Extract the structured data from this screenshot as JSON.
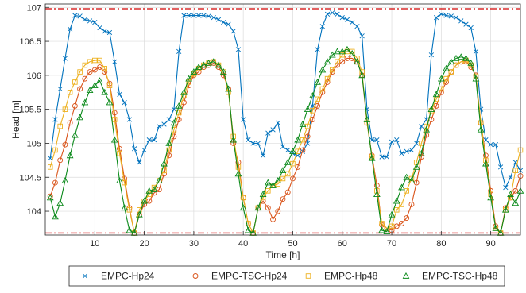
{
  "chart_data": {
    "type": "line",
    "xlabel": "Time [h]",
    "ylabel": "Head [m]",
    "xlim": [
      0,
      96
    ],
    "ylim": [
      103.65,
      107.05
    ],
    "xticks": [
      10,
      20,
      30,
      40,
      50,
      60,
      70,
      80,
      90
    ],
    "yticks": [
      104,
      104.5,
      105,
      105.5,
      106,
      106.5,
      107
    ],
    "ytick_labels": [
      "104",
      "104.5",
      "105",
      "105.5",
      "106",
      "106.5",
      "107"
    ],
    "grid": true,
    "legend_position": "bottom-outside",
    "reference_lines": [
      {
        "value": 106.98,
        "color": "#d10000",
        "style": "dash-dot"
      },
      {
        "value": 103.68,
        "color": "#d10000",
        "style": "dash-dot"
      }
    ],
    "x": [
      1,
      2,
      3,
      4,
      5,
      6,
      7,
      8,
      9,
      10,
      11,
      12,
      13,
      14,
      15,
      16,
      17,
      18,
      19,
      20,
      21,
      22,
      23,
      24,
      25,
      26,
      27,
      28,
      29,
      30,
      31,
      32,
      33,
      34,
      35,
      36,
      37,
      38,
      39,
      40,
      41,
      42,
      43,
      44,
      45,
      46,
      47,
      48,
      49,
      50,
      51,
      52,
      53,
      54,
      55,
      56,
      57,
      58,
      59,
      60,
      61,
      62,
      63,
      64,
      65,
      66,
      67,
      68,
      69,
      70,
      71,
      72,
      73,
      74,
      75,
      76,
      77,
      78,
      79,
      80,
      81,
      82,
      83,
      84,
      85,
      86,
      87,
      88,
      89,
      90,
      91,
      92,
      93,
      94,
      95,
      96
    ],
    "series": [
      {
        "name": "EMPC-Hp24",
        "color": "#0072bd",
        "marker": "x",
        "values": [
          104.78,
          105.35,
          105.8,
          106.25,
          106.68,
          106.88,
          106.87,
          106.82,
          106.8,
          106.78,
          106.7,
          106.65,
          106.63,
          106.2,
          105.72,
          105.6,
          105.35,
          104.92,
          104.72,
          104.9,
          105.05,
          105.05,
          105.25,
          105.28,
          105.35,
          105.5,
          106.35,
          106.88,
          106.88,
          106.88,
          106.88,
          106.88,
          106.87,
          106.85,
          106.82,
          106.78,
          106.75,
          106.65,
          106.38,
          105.35,
          105.05,
          105.0,
          105.0,
          104.82,
          105.15,
          105.2,
          105.3,
          104.95,
          104.9,
          104.85,
          104.82,
          104.88,
          105.0,
          105.55,
          106.38,
          106.72,
          106.9,
          106.92,
          106.9,
          106.85,
          106.82,
          106.78,
          106.72,
          106.58,
          105.5,
          105.05,
          105.05,
          104.8,
          104.8,
          105.02,
          105.05,
          104.85,
          104.88,
          104.9,
          105.0,
          105.25,
          105.35,
          106.3,
          106.85,
          106.9,
          106.88,
          106.87,
          106.85,
          106.8,
          106.75,
          106.7,
          106.35,
          105.5,
          105.05,
          104.98,
          104.98,
          104.65,
          104.35,
          104.5,
          104.72,
          104.6
        ]
      },
      {
        "name": "EMPC-TSC-Hp24",
        "color": "#d95319",
        "marker": "o",
        "values": [
          104.22,
          104.42,
          104.75,
          104.98,
          105.3,
          105.55,
          105.8,
          105.95,
          106.05,
          106.08,
          106.12,
          106.05,
          105.88,
          105.45,
          104.92,
          104.48,
          104.05,
          103.68,
          103.95,
          104.1,
          104.15,
          104.27,
          104.32,
          104.55,
          104.82,
          105.1,
          105.35,
          105.6,
          105.85,
          106.0,
          106.05,
          106.12,
          106.15,
          106.18,
          106.12,
          106.0,
          105.8,
          105.0,
          104.72,
          104.2,
          103.82,
          103.68,
          104.05,
          104.15,
          104.05,
          103.88,
          104.0,
          104.18,
          104.28,
          104.48,
          104.65,
          104.9,
          105.1,
          105.35,
          105.55,
          105.75,
          105.9,
          106.05,
          106.15,
          106.2,
          106.25,
          106.25,
          106.2,
          106.0,
          105.3,
          104.82,
          104.38,
          103.8,
          103.75,
          103.72,
          103.78,
          103.82,
          103.9,
          104.1,
          104.42,
          104.8,
          105.12,
          105.35,
          105.55,
          105.75,
          105.9,
          106.05,
          106.15,
          106.2,
          106.2,
          106.12,
          106.0,
          105.3,
          104.82,
          104.3,
          103.78,
          103.68,
          104.05,
          104.2,
          104.3,
          104.52
        ]
      },
      {
        "name": "EMPC-Hp48",
        "color": "#edb120",
        "marker": "s",
        "values": [
          104.65,
          104.9,
          105.25,
          105.5,
          105.75,
          105.9,
          106.05,
          106.15,
          106.2,
          106.22,
          106.22,
          106.1,
          105.85,
          105.35,
          104.85,
          104.42,
          104.02,
          103.68,
          104.02,
          104.15,
          104.25,
          104.35,
          104.45,
          104.6,
          104.9,
          105.2,
          105.45,
          105.7,
          105.9,
          106.02,
          106.1,
          106.15,
          106.18,
          106.2,
          106.15,
          106.05,
          105.75,
          105.1,
          104.65,
          104.2,
          103.82,
          103.68,
          104.05,
          104.2,
          104.3,
          104.38,
          104.4,
          104.48,
          104.55,
          104.7,
          104.88,
          105.05,
          105.25,
          105.48,
          105.65,
          105.8,
          105.95,
          106.08,
          106.2,
          106.3,
          106.35,
          106.35,
          106.25,
          106.05,
          105.3,
          104.8,
          104.3,
          103.82,
          103.75,
          103.78,
          104.02,
          104.1,
          104.3,
          104.48,
          104.72,
          105.0,
          105.25,
          105.48,
          105.65,
          105.8,
          105.95,
          106.05,
          106.15,
          106.2,
          106.22,
          106.15,
          105.98,
          105.3,
          104.75,
          104.25,
          103.75,
          103.68,
          104.02,
          104.2,
          104.6,
          104.9
        ]
      },
      {
        "name": "EMPC-TSC-Hp48",
        "color": "#0b8a1b",
        "marker": "^",
        "values": [
          104.2,
          103.92,
          104.12,
          104.45,
          104.82,
          105.12,
          105.38,
          105.6,
          105.78,
          105.85,
          105.92,
          105.75,
          105.6,
          105.05,
          104.45,
          104.05,
          103.72,
          103.68,
          103.95,
          104.15,
          104.3,
          104.32,
          104.45,
          104.7,
          105.0,
          105.3,
          105.55,
          105.75,
          105.95,
          106.05,
          106.12,
          106.15,
          106.18,
          106.2,
          106.15,
          106.05,
          105.8,
          105.05,
          104.55,
          104.05,
          103.72,
          103.68,
          104.05,
          104.25,
          104.42,
          104.38,
          104.45,
          104.6,
          104.72,
          104.88,
          105.05,
          105.28,
          105.5,
          105.7,
          105.9,
          106.08,
          106.2,
          106.3,
          106.35,
          106.35,
          106.38,
          106.32,
          106.2,
          106.0,
          105.35,
          104.78,
          104.25,
          103.72,
          103.7,
          103.95,
          104.15,
          104.35,
          104.5,
          104.45,
          104.65,
          104.85,
          105.2,
          105.5,
          105.72,
          105.95,
          106.1,
          106.2,
          106.25,
          106.27,
          106.25,
          106.18,
          105.95,
          105.2,
          104.7,
          104.2,
          103.75,
          103.68,
          104.02,
          104.25,
          104.12,
          104.3
        ]
      }
    ]
  }
}
